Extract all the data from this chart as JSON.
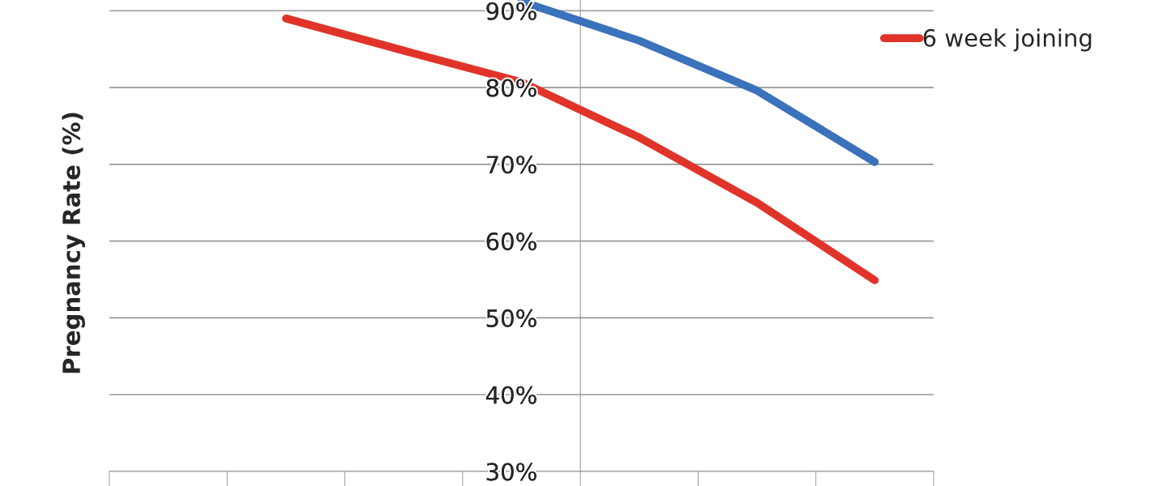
{
  "chart_data": {
    "type": "line",
    "ylabel": "Pregnancy Rate (%)",
    "categories": [
      null,
      null,
      null,
      null,
      null,
      null,
      null
    ],
    "series": [
      {
        "color": "#3a72bb",
        "values": [
          null,
          null,
          null,
          91.2,
          86.1,
          79.6,
          70.3
        ]
      },
      {
        "name": "6 week joining",
        "color": "#e0342a",
        "values": [
          null,
          89.0,
          84.8,
          80.7,
          73.5,
          65.0,
          54.9
        ]
      }
    ],
    "ylim": [
      30,
      91.4
    ],
    "yticks": [
      {
        "value": 30,
        "label": "30%"
      },
      {
        "value": 40,
        "label": "40%"
      },
      {
        "value": 50,
        "label": "50%"
      },
      {
        "value": 60,
        "label": "60%"
      },
      {
        "value": 70,
        "label": "70%"
      },
      {
        "value": 80,
        "label": "80%"
      },
      {
        "value": 90,
        "label": "90%"
      }
    ],
    "grid": "y",
    "legend": "top right",
    "marker": "none",
    "line_style": "solid"
  }
}
